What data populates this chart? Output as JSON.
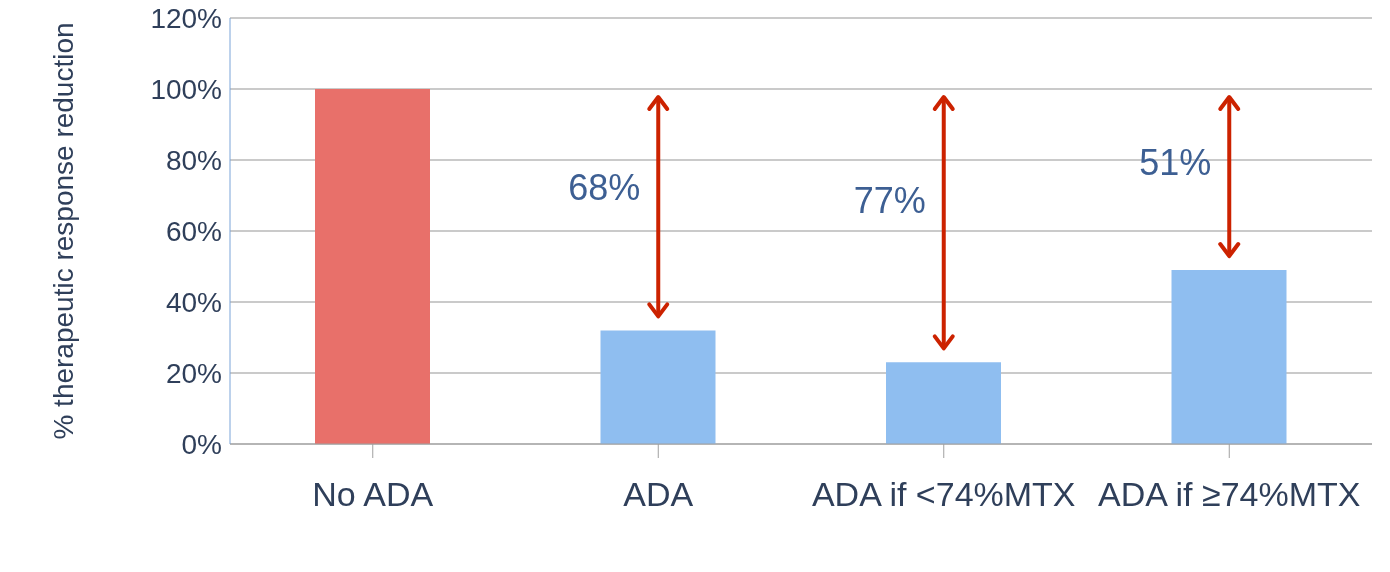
{
  "chart_data": {
    "type": "bar",
    "ylabel": "% therapeutic response reduction",
    "categories": [
      "No ADA",
      "ADA",
      "ADA if <74%MTX",
      "ADA if ≥74%MTX"
    ],
    "values": [
      100,
      32,
      23,
      49
    ],
    "colors": [
      "#e8706a",
      "#8fbef0",
      "#8fbef0",
      "#8fbef0"
    ],
    "ylim": [
      0,
      120
    ],
    "yticks": [
      {
        "value": 0,
        "label": "0%"
      },
      {
        "value": 20,
        "label": "20%"
      },
      {
        "value": 40,
        "label": "40%"
      },
      {
        "value": 60,
        "label": "60%"
      },
      {
        "value": 80,
        "label": "80%"
      },
      {
        "value": 100,
        "label": "100%"
      },
      {
        "value": 120,
        "label": "120%"
      }
    ],
    "grid": "y",
    "annotations": [
      "68%",
      "77%",
      "51%"
    ]
  }
}
